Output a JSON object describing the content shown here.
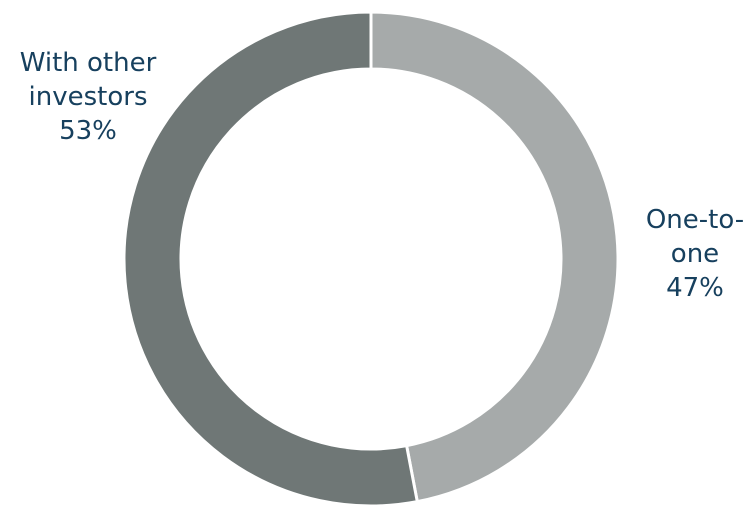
{
  "chart_data": {
    "type": "pie",
    "variant": "donut",
    "slices": [
      {
        "category": "One-to-one",
        "label_lines": [
          "One-to-",
          "one"
        ],
        "value": 47,
        "value_label": "47%",
        "color": "#a6aaaa"
      },
      {
        "category": "With other investors",
        "label_lines": [
          "With other",
          "investors"
        ],
        "value": 53,
        "value_label": "53%",
        "color": "#6f7776"
      }
    ],
    "label_color": "#17405e",
    "separator_color": "#ffffff",
    "start": "top",
    "direction": "clockwise"
  }
}
